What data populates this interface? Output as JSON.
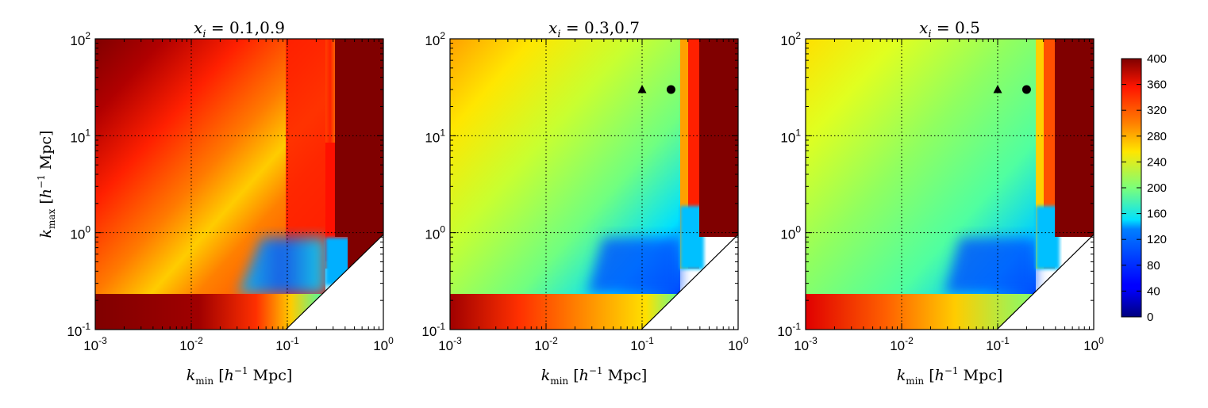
{
  "chart_data": [
    {
      "type": "heatmap",
      "title_var": "x",
      "title_sub": "i",
      "title_value": "0.1,0.9",
      "xlabel_var": "k",
      "xlabel_sub": "min",
      "xlabel_unit_open": "[",
      "xlabel_unit_h": "h",
      "xlabel_unit_exp": "−1",
      "xlabel_unit_rest": "Mpc]",
      "ylabel_var": "k",
      "ylabel_sub": "max",
      "ylabel_unit_open": "[",
      "ylabel_unit_h": "h",
      "ylabel_unit_exp": "−1",
      "ylabel_unit_rest": "Mpc]",
      "xscale": "log",
      "yscale": "log",
      "xlim": [
        0.001,
        1
      ],
      "ylim": [
        0.1,
        100
      ],
      "xticks": [
        {
          "base": "10",
          "exp": "-3"
        },
        {
          "base": "10",
          "exp": "-2"
        },
        {
          "base": "10",
          "exp": "-1"
        },
        {
          "base": "10",
          "exp": "0"
        }
      ],
      "yticks": [
        {
          "base": "10",
          "exp": "-1"
        },
        {
          "base": "10",
          "exp": "0"
        },
        {
          "base": "10",
          "exp": "1"
        },
        {
          "base": "10",
          "exp": "2"
        }
      ],
      "grid": true,
      "markers": []
    },
    {
      "type": "heatmap",
      "title_var": "x",
      "title_sub": "i",
      "title_value": "0.3,0.7",
      "xlabel_var": "k",
      "xlabel_sub": "min",
      "xlabel_unit_open": "[",
      "xlabel_unit_h": "h",
      "xlabel_unit_exp": "−1",
      "xlabel_unit_rest": "Mpc]",
      "xscale": "log",
      "yscale": "log",
      "xlim": [
        0.001,
        1
      ],
      "ylim": [
        0.1,
        100
      ],
      "xticks": [
        {
          "base": "10",
          "exp": "-3"
        },
        {
          "base": "10",
          "exp": "-2"
        },
        {
          "base": "10",
          "exp": "-1"
        },
        {
          "base": "10",
          "exp": "0"
        }
      ],
      "yticks": [
        {
          "base": "10",
          "exp": "-1"
        },
        {
          "base": "10",
          "exp": "0"
        },
        {
          "base": "10",
          "exp": "1"
        },
        {
          "base": "10",
          "exp": "2"
        }
      ],
      "grid": true,
      "markers": [
        {
          "shape": "triangle",
          "x": 0.1,
          "y": 30
        },
        {
          "shape": "circle",
          "x": 0.2,
          "y": 30
        }
      ]
    },
    {
      "type": "heatmap",
      "title_var": "x",
      "title_sub": "i",
      "title_value": "0.5",
      "xlabel_var": "k",
      "xlabel_sub": "min",
      "xlabel_unit_open": "[",
      "xlabel_unit_h": "h",
      "xlabel_unit_exp": "−1",
      "xlabel_unit_rest": "Mpc]",
      "xscale": "log",
      "yscale": "log",
      "xlim": [
        0.001,
        1
      ],
      "ylim": [
        0.1,
        100
      ],
      "xticks": [
        {
          "base": "10",
          "exp": "-3"
        },
        {
          "base": "10",
          "exp": "-2"
        },
        {
          "base": "10",
          "exp": "-1"
        },
        {
          "base": "10",
          "exp": "0"
        }
      ],
      "yticks": [
        {
          "base": "10",
          "exp": "-1"
        },
        {
          "base": "10",
          "exp": "0"
        },
        {
          "base": "10",
          "exp": "1"
        },
        {
          "base": "10",
          "exp": "2"
        }
      ],
      "grid": true,
      "markers": [
        {
          "shape": "triangle",
          "x": 0.1,
          "y": 30
        },
        {
          "shape": "circle",
          "x": 0.2,
          "y": 30
        }
      ]
    }
  ],
  "colorbar": {
    "colormap": "jet",
    "range": [
      0,
      400
    ],
    "ticks": [
      "0",
      "40",
      "80",
      "120",
      "160",
      "200",
      "240",
      "280",
      "320",
      "360",
      "400"
    ]
  },
  "colors": {
    "dark_red": "#800000",
    "masked": "#ffffff"
  }
}
